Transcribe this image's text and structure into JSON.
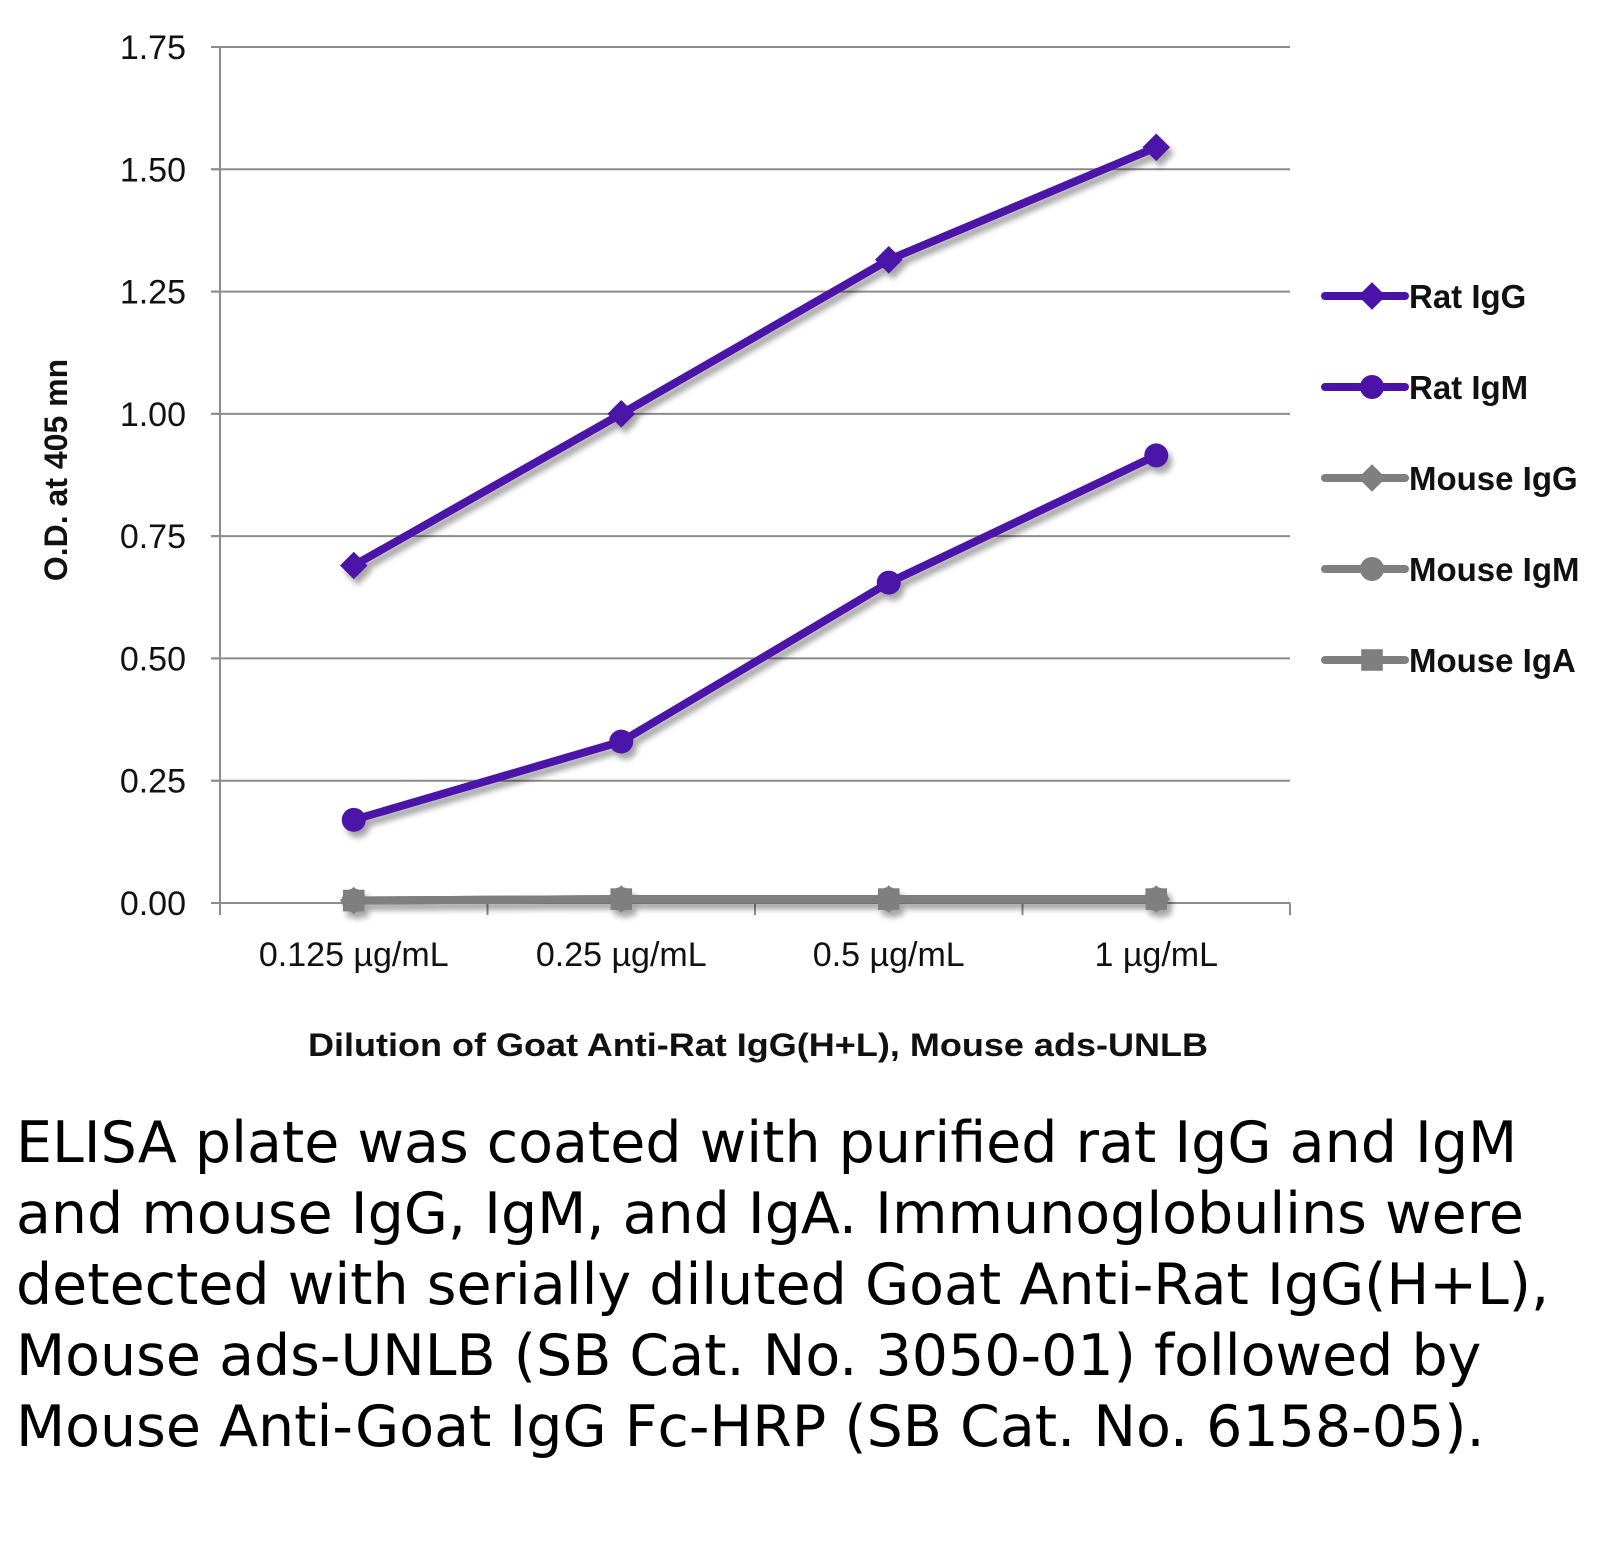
{
  "chart_data": {
    "type": "line",
    "title": "",
    "categories": [
      "0.125 µg/mL",
      "0.25 µg/mL",
      "0.5 µg/mL",
      "1 µg/mL"
    ],
    "ylim": [
      0,
      1.75
    ],
    "yticks": [
      "0.00",
      "0.25",
      "0.50",
      "0.75",
      "1.00",
      "1.25",
      "1.50",
      "1.75"
    ],
    "ylabel": "O.D. at 405 mn",
    "xlabel": "Dilution of Goat Anti-Rat IgG(H+L), Mouse ads-UNLB",
    "grid": true,
    "legend_position": "right",
    "series": [
      {
        "name": "Rat IgG",
        "values": [
          0.69,
          1.0,
          1.315,
          1.545
        ],
        "color": "#4B12A8",
        "marker": "diamond"
      },
      {
        "name": "Rat IgM",
        "values": [
          0.17,
          0.33,
          0.655,
          0.915
        ],
        "color": "#4B12A8",
        "marker": "circle"
      },
      {
        "name": "Mouse IgG",
        "values": [
          0.005,
          0.008,
          0.008,
          0.008
        ],
        "color": "#7F7F7F",
        "marker": "diamond"
      },
      {
        "name": "Mouse IgM",
        "values": [
          0.005,
          0.008,
          0.008,
          0.008
        ],
        "color": "#7F7F7F",
        "marker": "circle"
      },
      {
        "name": "Mouse IgA",
        "values": [
          0.005,
          0.008,
          0.008,
          0.008
        ],
        "color": "#7F7F7F",
        "marker": "square"
      }
    ]
  },
  "caption": "ELISA plate was coated with purified rat IgG and IgM and mouse IgG, IgM, and IgA. Immunoglobulins were detected with serially diluted Goat Anti-Rat IgG(H+L), Mouse ads-UNLB (SB Cat. No. 3050-01) followed by Mouse Anti-Goat IgG Fc-HRP (SB Cat. No. 6158-05)."
}
